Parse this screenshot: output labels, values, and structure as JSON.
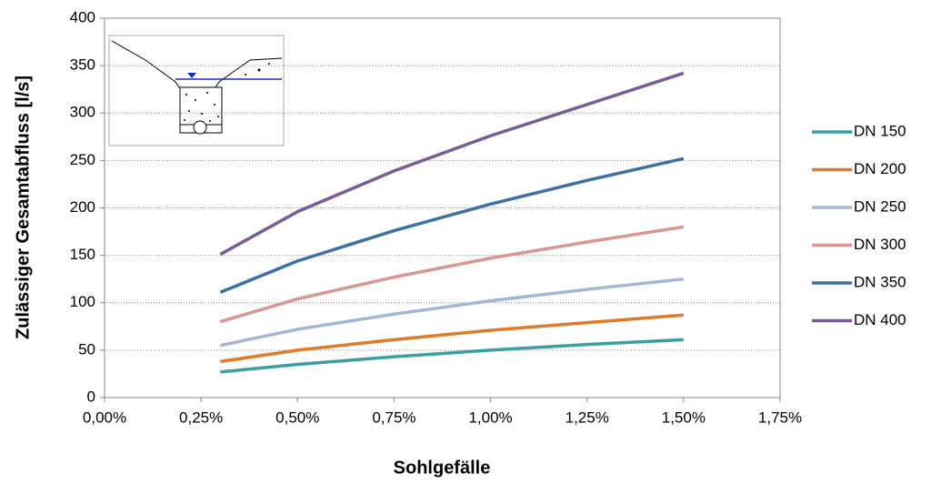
{
  "chart_data": {
    "type": "line",
    "x_label": "Sohlgefälle",
    "y_label": "Zulässiger Gesamtabfluss [l/s]",
    "x": [
      0.3,
      0.5,
      0.75,
      1.0,
      1.25,
      1.5
    ],
    "series": [
      {
        "name": "DN 150",
        "color": "#3a9ea5",
        "values": [
          27,
          35,
          43,
          50,
          56,
          61
        ]
      },
      {
        "name": "DN 200",
        "color": "#e07b2a",
        "values": [
          38,
          50,
          61,
          71,
          79,
          87
        ]
      },
      {
        "name": "DN 250",
        "color": "#a3b6d8",
        "values": [
          55,
          72,
          88,
          102,
          114,
          125
        ]
      },
      {
        "name": "DN 300",
        "color": "#d99694",
        "values": [
          80,
          104,
          127,
          147,
          164,
          180
        ]
      },
      {
        "name": "DN 350",
        "color": "#3e70a6",
        "values": [
          111,
          144,
          176,
          204,
          229,
          252
        ]
      },
      {
        "name": "DN 400",
        "color": "#7b5c96",
        "values": [
          151,
          196,
          239,
          276,
          309,
          342
        ]
      }
    ],
    "xlim": [
      0,
      1.75
    ],
    "xticks": [
      {
        "value": 0,
        "label": "0,00%"
      },
      {
        "value": 0.25,
        "label": "0,25%"
      },
      {
        "value": 0.5,
        "label": "0,50%"
      },
      {
        "value": 0.75,
        "label": "0,75%"
      },
      {
        "value": 1.0,
        "label": "1,00%"
      },
      {
        "value": 1.25,
        "label": "1,25%"
      },
      {
        "value": 1.5,
        "label": "1,50%"
      },
      {
        "value": 1.75,
        "label": "1,75%"
      }
    ],
    "ylim": [
      0,
      400
    ],
    "yticks": [
      0,
      50,
      100,
      150,
      200,
      250,
      300,
      350,
      400
    ],
    "grid": true,
    "legend": "right"
  }
}
